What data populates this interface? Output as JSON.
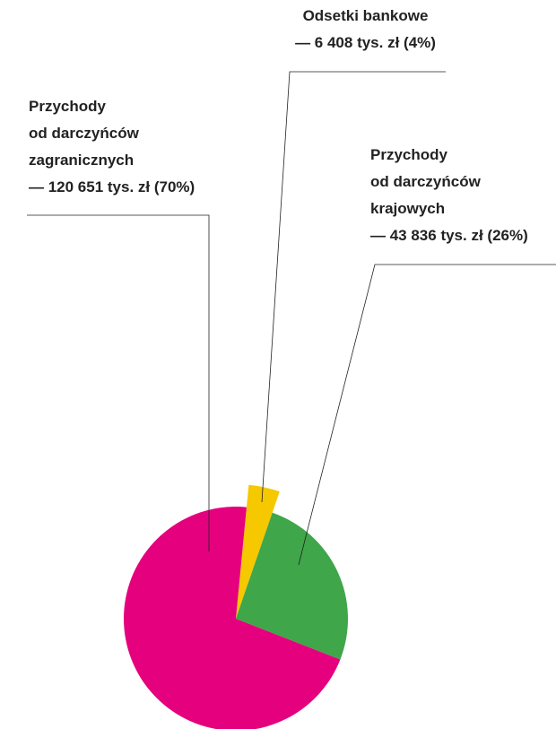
{
  "chart_data": {
    "type": "pie",
    "categories": [
      "Odsetki bankowe",
      "Przychody\nod darczyńców\nkrajowych",
      "Przychody\nod darczyńców\nzagranicznych"
    ],
    "values": [
      6408,
      43836,
      120651
    ],
    "value_labels": [
      "— 6 408 tys. zł (4%)",
      "— 43 836 tys. zł (26%)",
      "— 120 651 tys. zł (70%)"
    ],
    "colors": [
      "#f5c800",
      "#3fa64a",
      "#e5007e"
    ]
  }
}
